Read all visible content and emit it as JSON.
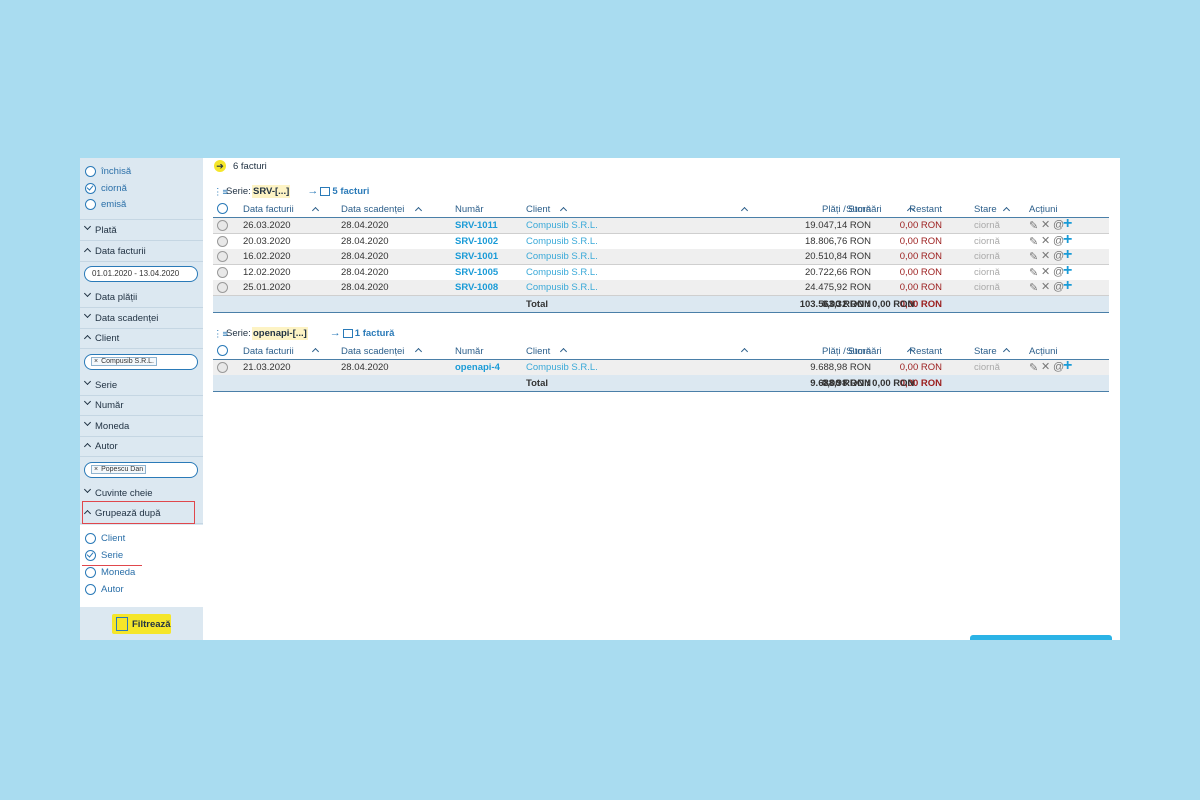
{
  "sidebar": {
    "status_options": [
      {
        "label": "închisă",
        "checked": false
      },
      {
        "label": "ciornă",
        "checked": true
      },
      {
        "label": "emisă",
        "checked": false
      }
    ],
    "sections": [
      {
        "label": "Plată",
        "expanded": false
      },
      {
        "label": "Data facturii",
        "expanded": true,
        "value": "01.01.2020 - 13.04.2020"
      },
      {
        "label": "Data plății",
        "expanded": false
      },
      {
        "label": "Data scadenței",
        "expanded": false
      },
      {
        "label": "Client",
        "expanded": true,
        "tag": "Compusib S.R.L."
      },
      {
        "label": "Serie",
        "expanded": false
      },
      {
        "label": "Număr",
        "expanded": false
      },
      {
        "label": "Moneda",
        "expanded": false
      },
      {
        "label": "Autor",
        "expanded": true,
        "tag": "Popescu Dan"
      },
      {
        "label": "Cuvinte cheie",
        "expanded": false
      }
    ],
    "group_by": {
      "label": "Grupează după",
      "options": [
        {
          "label": "Client",
          "checked": false
        },
        {
          "label": "Serie",
          "checked": true
        },
        {
          "label": "Moneda",
          "checked": false
        },
        {
          "label": "Autor",
          "checked": false
        }
      ]
    },
    "filter_button": "Filtrează"
  },
  "summary": "6 facturi",
  "columns": [
    {
      "label": "Data facturii",
      "sortable": true
    },
    {
      "label": "Data scadenței",
      "sortable": true
    },
    {
      "label": "Număr",
      "sortable": false
    },
    {
      "label": "Client",
      "sortable": true
    },
    {
      "label": "Sumă",
      "sortable": true
    },
    {
      "label": "Restant",
      "sortable": false
    },
    {
      "label": "Plăți / Stornări",
      "sortable": true
    },
    {
      "label": "Stare",
      "sortable": true
    },
    {
      "label": "Acțiuni",
      "sortable": false
    }
  ],
  "groups": [
    {
      "label": "Serie:",
      "series": "SRV-[...]",
      "count": "5 facturi",
      "rows": [
        {
          "date": "26.03.2020",
          "due": "28.04.2020",
          "number": "SRV-1011",
          "client": "Compusib S.R.L.",
          "sum": "19.047,14 RON",
          "restant": "0,00 RON",
          "status": "ciornă"
        },
        {
          "date": "20.03.2020",
          "due": "28.04.2020",
          "number": "SRV-1002",
          "client": "Compusib S.R.L.",
          "sum": "18.806,76 RON",
          "restant": "0,00 RON",
          "status": "ciornă"
        },
        {
          "date": "16.02.2020",
          "due": "28.04.2020",
          "number": "SRV-1001",
          "client": "Compusib S.R.L.",
          "sum": "20.510,84 RON",
          "restant": "0,00 RON",
          "status": "ciornă"
        },
        {
          "date": "12.02.2020",
          "due": "28.04.2020",
          "number": "SRV-1005",
          "client": "Compusib S.R.L.",
          "sum": "20.722,66 RON",
          "restant": "0,00 RON",
          "status": "ciornă"
        },
        {
          "date": "25.01.2020",
          "due": "28.04.2020",
          "number": "SRV-1008",
          "client": "Compusib S.R.L.",
          "sum": "24.475,92 RON",
          "restant": "0,00 RON",
          "status": "ciornă"
        }
      ],
      "total": {
        "label": "Total",
        "sum": "103.563,32 RON",
        "restant": "0,00 RON",
        "payments": "0,00 RON / 0,00 RON"
      }
    },
    {
      "label": "Serie:",
      "series": "openapi-[...]",
      "count": "1 factură",
      "rows": [
        {
          "date": "21.03.2020",
          "due": "28.04.2020",
          "number": "openapi-4",
          "client": "Compusib S.R.L.",
          "sum": "9.688,98 RON",
          "restant": "0,00 RON",
          "status": "ciornă"
        }
      ],
      "total": {
        "label": "Total",
        "sum": "9.688,98 RON",
        "restant": "0,00 RON",
        "payments": "0,00 RON / 0,00 RON"
      }
    }
  ]
}
